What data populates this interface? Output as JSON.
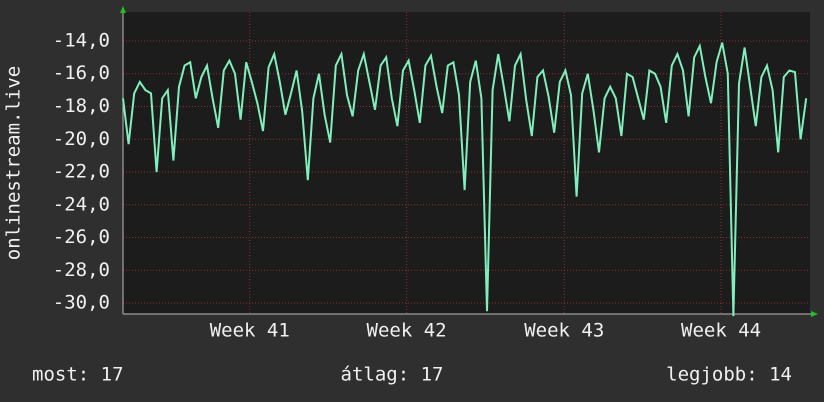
{
  "chart_data": {
    "type": "line",
    "ylabel": "onlinestream.live",
    "x": [
      0,
      0.25,
      0.5,
      0.75,
      1,
      1.25,
      1.5,
      1.75,
      2,
      2.25,
      2.5,
      2.75,
      3,
      3.25,
      3.5,
      3.75,
      4,
      4.25,
      4.5,
      4.75,
      5,
      5.25,
      5.5,
      5.75,
      6,
      6.25,
      6.5,
      6.75,
      7,
      7.25,
      7.5,
      7.75,
      8,
      8.25,
      8.5,
      8.75,
      9,
      9.25,
      9.5,
      9.75,
      10,
      10.25,
      10.5,
      10.75,
      11,
      11.25,
      11.5,
      11.75,
      12,
      12.25,
      12.5,
      12.75,
      13,
      13.25,
      13.5,
      13.75,
      14,
      14.25,
      14.5,
      14.75,
      15,
      15.25,
      15.5,
      15.75,
      16,
      16.25,
      16.5,
      16.75,
      17,
      17.25,
      17.5,
      17.75,
      18,
      18.25,
      18.5,
      18.75,
      19,
      19.25,
      19.5,
      19.75,
      20,
      20.25,
      20.5,
      20.75,
      21,
      21.25,
      21.5,
      21.75,
      22,
      22.25,
      22.5,
      22.75,
      23,
      23.25,
      23.5,
      23.75,
      24,
      24.25,
      24.5,
      24.75,
      25,
      25.25,
      25.5,
      25.75,
      26,
      26.25,
      26.5,
      26.75,
      27,
      27.25,
      27.5,
      27.75,
      28,
      28.25,
      28.5,
      28.75,
      29,
      29.25,
      29.5,
      29.75,
      30,
      30.25,
      30.5
    ],
    "series": [
      {
        "name": "onlinestream.live",
        "color": "#80efbc",
        "values": [
          -17.5,
          -20.3,
          -17.2,
          -16.5,
          -17,
          -17.2,
          -22,
          -17.5,
          -17,
          -21.3,
          -16.8,
          -15.5,
          -15.3,
          -17.5,
          -16.2,
          -15.5,
          -17.5,
          -19.3,
          -15.8,
          -15.2,
          -16,
          -18.8,
          -15.3,
          -16.5,
          -17.8,
          -19.5,
          -15.6,
          -14.8,
          -16.5,
          -18.5,
          -17.2,
          -15.8,
          -18.3,
          -22.5,
          -17.5,
          -16,
          -18.5,
          -20.2,
          -15.5,
          -14.8,
          -17.3,
          -18.6,
          -15.8,
          -14.8,
          -16.5,
          -18.2,
          -15.5,
          -15,
          -17.5,
          -19.2,
          -15.8,
          -15.2,
          -17,
          -19,
          -15.5,
          -14.9,
          -16.8,
          -18.4,
          -15.5,
          -15.3,
          -17.3,
          -23.1,
          -16.5,
          -15.2,
          -17.5,
          -30.5,
          -17,
          -14.8,
          -16.8,
          -18.9,
          -15.5,
          -14.8,
          -17.6,
          -19.8,
          -16.2,
          -15.8,
          -17.4,
          -19.6,
          -16.5,
          -15.8,
          -17.3,
          -23.5,
          -17.2,
          -16,
          -18.2,
          -20.8,
          -17.5,
          -16.8,
          -17.5,
          -19.8,
          -16,
          -16.2,
          -17.5,
          -18.8,
          -15.8,
          -16,
          -16.8,
          -19,
          -15.5,
          -14.8,
          -15.8,
          -18.6,
          -15,
          -14.3,
          -16.2,
          -17.8,
          -15.3,
          -14.1,
          -16,
          -30.8,
          -16.6,
          -14.4,
          -16.8,
          -19.2,
          -16.2,
          -15.5,
          -17,
          -20.8,
          -16.2,
          -15.8,
          -15.9,
          -20,
          -17.5
        ]
      }
    ],
    "xlim": [
      0,
      30.67
    ],
    "xticks": [
      {
        "value": 5.66,
        "label": "Week 41"
      },
      {
        "value": 12.66,
        "label": "Week 42"
      },
      {
        "value": 19.7,
        "label": "Week 43"
      },
      {
        "value": 26.7,
        "label": "Week 44"
      }
    ],
    "ylim": [
      -30.67,
      -12.23
    ],
    "yticks": [
      {
        "value": -30,
        "label": "-30,0"
      },
      {
        "value": -28,
        "label": "-28,0"
      },
      {
        "value": -26,
        "label": "-26,0"
      },
      {
        "value": -24,
        "label": "-24,0"
      },
      {
        "value": -22,
        "label": "-22,0"
      },
      {
        "value": -20,
        "label": "-20,0"
      },
      {
        "value": -18,
        "label": "-18,0"
      },
      {
        "value": -16,
        "label": "-16,0"
      },
      {
        "value": -14,
        "label": "-14,0"
      }
    ],
    "grid": true,
    "legend": [
      "most: 17",
      "átlag: 17",
      "legjobb: 14"
    ]
  }
}
